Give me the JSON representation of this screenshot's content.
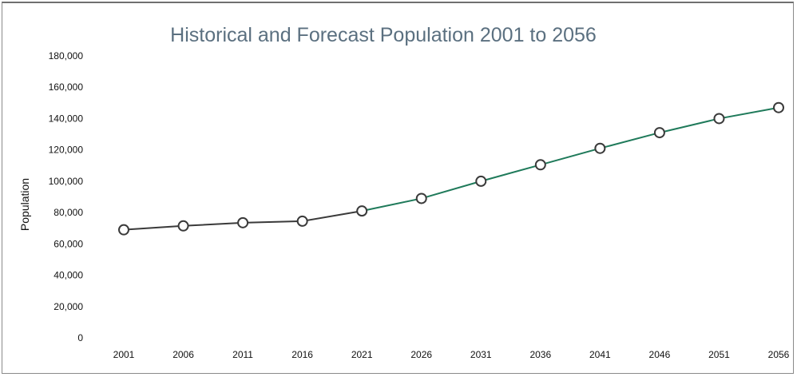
{
  "chart_data": {
    "type": "line",
    "title": "Historical and Forecast Population 2001 to 2056",
    "xlabel": "",
    "ylabel": "Population",
    "ylim": [
      0,
      180000
    ],
    "yticks": [
      0,
      20000,
      40000,
      60000,
      80000,
      100000,
      120000,
      140000,
      160000,
      180000
    ],
    "ytick_labels": [
      "0",
      "20,000",
      "40,000",
      "60,000",
      "80,000",
      "100,000",
      "120,000",
      "140,000",
      "160,000",
      "180,000"
    ],
    "categories": [
      "2001",
      "2006",
      "2011",
      "2016",
      "2021",
      "2026",
      "2031",
      "2036",
      "2041",
      "2046",
      "2051",
      "2056"
    ],
    "grid": false,
    "series": [
      {
        "color": "#3a3a3a",
        "x": [
          "2001",
          "2006",
          "2011",
          "2016",
          "2021"
        ],
        "values": [
          69000,
          71500,
          73500,
          74500,
          81000
        ]
      },
      {
        "color": "#1f7a5a",
        "x": [
          "2021",
          "2026",
          "2031",
          "2036",
          "2041",
          "2046",
          "2051",
          "2056"
        ],
        "values": [
          81000,
          89000,
          100000,
          110500,
          121000,
          131000,
          140000,
          147000
        ]
      }
    ],
    "marker_fill": "#ffffff",
    "marker_stroke": "#3a3a3a"
  }
}
